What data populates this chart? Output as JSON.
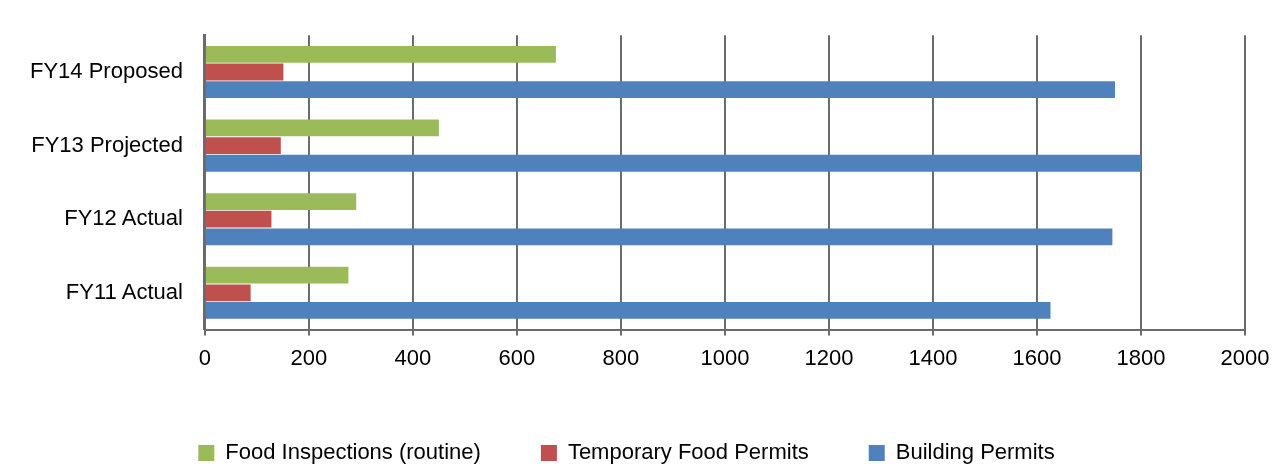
{
  "chart_data": {
    "type": "bar",
    "orientation": "horizontal",
    "categories": [
      "FY14 Proposed",
      "FY13 Projected",
      "FY12 Actual",
      "FY11 Actual"
    ],
    "series": [
      {
        "name": "Food Inspections (routine)",
        "color": "#9bbb59",
        "values": [
          675,
          450,
          291,
          276
        ]
      },
      {
        "name": "Temporary Food Permits",
        "color": "#c0504d",
        "values": [
          151,
          146,
          128,
          88
        ]
      },
      {
        "name": "Building Permits",
        "color": "#4f81bd",
        "values": [
          1750,
          1800,
          1745,
          1626
        ]
      }
    ],
    "xlim": [
      0,
      2000
    ],
    "xticks": [
      0,
      200,
      400,
      600,
      800,
      1000,
      1200,
      1400,
      1600,
      1800,
      2000
    ],
    "grid": "x",
    "legend": "bottom"
  }
}
